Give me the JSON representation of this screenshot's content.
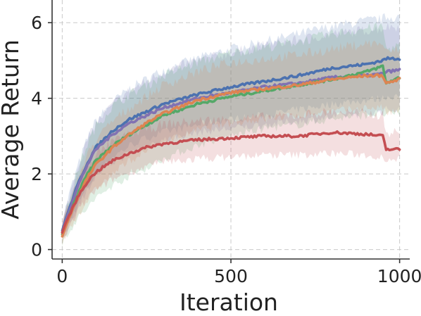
{
  "chart_data": {
    "type": "line",
    "title": "",
    "xlabel": "Iteration",
    "ylabel": "Average Return",
    "xlim": [
      -30,
      1030
    ],
    "ylim": [
      -0.25,
      6.6
    ],
    "xticks": [
      0,
      500,
      1000
    ],
    "xtick_labels": [
      "0",
      "500",
      "1000"
    ],
    "yticks": [
      0,
      2,
      4,
      6
    ],
    "ytick_labels": [
      "0",
      "2",
      "4",
      "6"
    ],
    "grid": true,
    "legend": "none",
    "x": [
      0,
      10,
      25,
      50,
      75,
      100,
      150,
      200,
      250,
      300,
      400,
      500,
      600,
      700,
      800,
      900,
      950,
      960,
      1000
    ],
    "series": [
      {
        "color": "#4c72b0",
        "values": [
          0.5,
          0.8,
          1.2,
          1.8,
          2.3,
          2.7,
          3.15,
          3.45,
          3.65,
          3.85,
          4.1,
          4.3,
          4.45,
          4.6,
          4.8,
          4.9,
          5.0,
          5.05,
          5.05
        ],
        "lower": [
          0.3,
          0.5,
          0.8,
          1.25,
          1.65,
          2.0,
          2.45,
          2.75,
          2.95,
          3.1,
          3.3,
          3.45,
          3.55,
          3.7,
          3.85,
          3.95,
          4.0,
          4.05,
          4.05
        ],
        "upper": [
          0.7,
          1.1,
          1.6,
          2.3,
          2.95,
          3.4,
          3.9,
          4.25,
          4.5,
          4.75,
          5.05,
          5.3,
          5.5,
          5.7,
          5.9,
          6.05,
          6.1,
          6.15,
          6.15
        ]
      },
      {
        "color": "#8172b2",
        "values": [
          0.45,
          0.75,
          1.15,
          1.75,
          2.25,
          2.65,
          3.05,
          3.35,
          3.55,
          3.75,
          4.0,
          4.15,
          4.3,
          4.4,
          4.55,
          4.6,
          4.65,
          4.7,
          4.75
        ],
        "lower": [
          0.25,
          0.45,
          0.75,
          1.2,
          1.6,
          1.95,
          2.3,
          2.55,
          2.75,
          2.9,
          3.1,
          3.2,
          3.3,
          3.4,
          3.5,
          3.6,
          3.65,
          3.7,
          3.7
        ],
        "upper": [
          0.65,
          1.05,
          1.55,
          2.3,
          2.9,
          3.35,
          3.85,
          4.2,
          4.45,
          4.7,
          5.0,
          5.2,
          5.4,
          5.55,
          5.7,
          5.8,
          5.85,
          5.9,
          5.9
        ]
      },
      {
        "color": "#55a868",
        "values": [
          0.4,
          0.65,
          1.0,
          1.55,
          2.0,
          2.35,
          2.75,
          3.05,
          3.3,
          3.55,
          3.85,
          4.05,
          4.2,
          4.35,
          4.5,
          4.7,
          4.85,
          4.4,
          4.55
        ],
        "lower": [
          0.15,
          0.35,
          0.55,
          0.85,
          1.1,
          1.35,
          1.7,
          1.95,
          2.15,
          2.4,
          2.75,
          3.0,
          3.2,
          3.3,
          3.45,
          3.55,
          3.6,
          3.55,
          3.6
        ],
        "upper": [
          0.65,
          0.95,
          1.45,
          2.2,
          2.8,
          3.25,
          3.8,
          4.1,
          4.35,
          4.6,
          4.95,
          5.2,
          5.35,
          5.5,
          5.7,
          5.85,
          5.9,
          5.3,
          5.4
        ]
      },
      {
        "color": "#dd8452",
        "values": [
          0.35,
          0.6,
          0.95,
          1.45,
          1.9,
          2.25,
          2.7,
          3.05,
          3.35,
          3.6,
          3.95,
          4.15,
          4.25,
          4.35,
          4.5,
          4.6,
          4.6,
          4.4,
          4.5
        ],
        "lower": [
          0.15,
          0.35,
          0.6,
          0.95,
          1.3,
          1.6,
          2.0,
          2.35,
          2.6,
          2.85,
          3.15,
          3.35,
          3.45,
          3.55,
          3.65,
          3.75,
          3.75,
          3.6,
          3.65
        ],
        "upper": [
          0.55,
          0.85,
          1.3,
          1.95,
          2.5,
          2.9,
          3.4,
          3.75,
          4.05,
          4.35,
          4.7,
          4.95,
          5.05,
          5.15,
          5.3,
          5.45,
          5.45,
          5.2,
          5.3
        ]
      },
      {
        "color": "#c44e52",
        "values": [
          0.45,
          0.7,
          1.0,
          1.45,
          1.8,
          2.05,
          2.35,
          2.55,
          2.7,
          2.8,
          2.9,
          2.95,
          3.0,
          3.0,
          3.1,
          3.05,
          3.0,
          2.65,
          2.65
        ],
        "lower": [
          0.2,
          0.4,
          0.65,
          1.05,
          1.35,
          1.55,
          1.85,
          2.05,
          2.2,
          2.3,
          2.4,
          2.45,
          2.5,
          2.5,
          2.55,
          2.5,
          2.45,
          2.4,
          2.4
        ],
        "upper": [
          0.7,
          1.0,
          1.35,
          1.9,
          2.25,
          2.5,
          2.85,
          3.05,
          3.2,
          3.3,
          3.4,
          3.45,
          3.5,
          3.55,
          3.65,
          3.6,
          3.55,
          3.1,
          3.1
        ]
      }
    ]
  }
}
